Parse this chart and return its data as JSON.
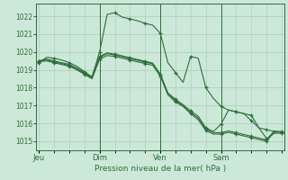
{
  "background_color": "#cce8d8",
  "grid_color": "#aaccb8",
  "line_color": "#2d6e3a",
  "title": "Pression niveau de la mer( hPa )",
  "ylim": [
    1014.5,
    1022.7
  ],
  "yticks": [
    1015,
    1016,
    1017,
    1018,
    1019,
    1020,
    1021,
    1022
  ],
  "xlim": [
    -1,
    97
  ],
  "day_positions": [
    0,
    24,
    48,
    72
  ],
  "day_labels": [
    "Jeu",
    "Dim",
    "Ven",
    "Sam"
  ],
  "series": [
    {
      "x": [
        0,
        3,
        6,
        9,
        12,
        15,
        18,
        21,
        24,
        27,
        30,
        33,
        36,
        39,
        42,
        45,
        48,
        51,
        54,
        57,
        60,
        63,
        66,
        69,
        72,
        75,
        78,
        81,
        84,
        87,
        90,
        93,
        96
      ],
      "y": [
        1019.4,
        1019.7,
        1019.65,
        1019.55,
        1019.4,
        1019.2,
        1018.9,
        1018.6,
        1020.0,
        1022.1,
        1022.2,
        1021.95,
        1021.85,
        1021.75,
        1021.6,
        1021.5,
        1021.05,
        1019.4,
        1018.85,
        1018.3,
        1019.75,
        1019.65,
        1018.0,
        1017.4,
        1016.95,
        1016.75,
        1016.65,
        1016.55,
        1016.15,
        1015.75,
        1015.65,
        1015.55,
        1015.5
      ]
    },
    {
      "x": [
        0,
        3,
        6,
        9,
        12,
        15,
        18,
        21,
        24,
        27,
        30,
        33,
        36,
        39,
        42,
        45,
        48,
        51,
        54,
        57,
        60,
        63,
        66,
        69,
        72,
        75,
        78,
        81,
        84,
        87,
        90,
        93,
        96
      ],
      "y": [
        1019.45,
        1019.5,
        1019.4,
        1019.3,
        1019.2,
        1019.0,
        1018.75,
        1018.5,
        1019.6,
        1019.8,
        1019.75,
        1019.65,
        1019.55,
        1019.45,
        1019.35,
        1019.25,
        1018.65,
        1017.6,
        1017.2,
        1016.95,
        1016.55,
        1016.2,
        1015.6,
        1015.4,
        1015.4,
        1015.5,
        1015.4,
        1015.3,
        1015.2,
        1015.1,
        1015.0,
        1015.5,
        1015.55
      ]
    },
    {
      "x": [
        0,
        3,
        6,
        9,
        12,
        15,
        18,
        21,
        24,
        27,
        30,
        33,
        36,
        39,
        42,
        45,
        48,
        51,
        54,
        57,
        60,
        63,
        66,
        69,
        72,
        75,
        78,
        81,
        84,
        87,
        90,
        93,
        96
      ],
      "y": [
        1019.5,
        1019.6,
        1019.5,
        1019.4,
        1019.3,
        1019.1,
        1018.85,
        1018.6,
        1019.75,
        1019.95,
        1019.88,
        1019.78,
        1019.68,
        1019.58,
        1019.48,
        1019.38,
        1018.75,
        1017.7,
        1017.35,
        1017.05,
        1016.7,
        1016.4,
        1015.75,
        1015.55,
        1015.95,
        1016.75,
        1016.65,
        1016.55,
        1016.45,
        1015.75,
        1015.15,
        1015.45,
        1015.45
      ]
    },
    {
      "x": [
        0,
        3,
        6,
        9,
        12,
        15,
        18,
        21,
        24,
        27,
        30,
        33,
        36,
        39,
        42,
        45,
        48,
        51,
        54,
        57,
        60,
        63,
        66,
        69,
        72,
        75,
        78,
        81,
        84,
        87,
        90,
        93,
        96
      ],
      "y": [
        1019.5,
        1019.55,
        1019.45,
        1019.35,
        1019.25,
        1019.05,
        1018.8,
        1018.55,
        1019.7,
        1019.9,
        1019.83,
        1019.73,
        1019.63,
        1019.53,
        1019.43,
        1019.33,
        1018.73,
        1017.68,
        1017.28,
        1016.98,
        1016.6,
        1016.3,
        1015.68,
        1015.48,
        1015.48,
        1015.58,
        1015.48,
        1015.38,
        1015.28,
        1015.18,
        1015.08,
        1015.58,
        1015.52
      ]
    }
  ]
}
